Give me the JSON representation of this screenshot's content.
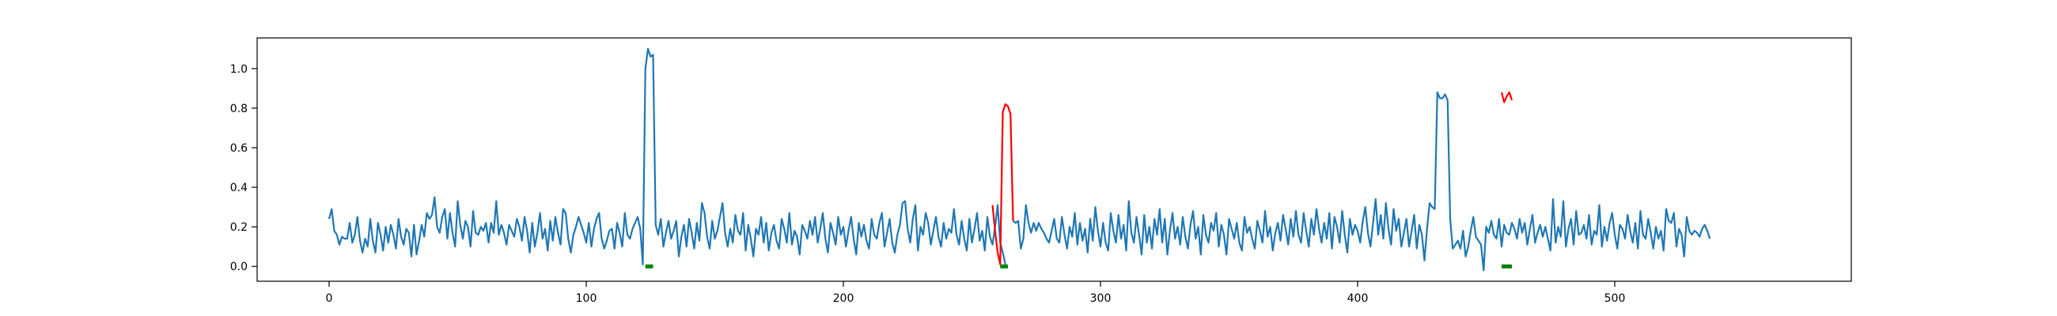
{
  "chart_data": {
    "type": "line",
    "title": "",
    "xlabel": "",
    "ylabel": "",
    "xlim": [
      -28,
      592
    ],
    "ylim": [
      -0.075,
      1.155
    ],
    "grid": false,
    "legend": "none",
    "x_ticks": [
      0,
      100,
      200,
      300,
      400,
      500
    ],
    "y_ticks": [
      0.0,
      0.2,
      0.4,
      0.6,
      0.8,
      1.0
    ],
    "x_tick_labels": [
      "0",
      "100",
      "200",
      "300",
      "400",
      "500"
    ],
    "y_tick_labels": [
      "0.0",
      "0.2",
      "0.4",
      "0.6",
      "0.8",
      "1.0"
    ],
    "series": [
      {
        "color": "#1f77b4",
        "x_start": 0,
        "values": [
          0.24,
          0.29,
          0.18,
          0.16,
          0.11,
          0.15,
          0.14,
          0.14,
          0.22,
          0.12,
          0.16,
          0.25,
          0.13,
          0.07,
          0.14,
          0.1,
          0.24,
          0.13,
          0.07,
          0.22,
          0.16,
          0.08,
          0.2,
          0.12,
          0.21,
          0.16,
          0.09,
          0.24,
          0.15,
          0.11,
          0.19,
          0.17,
          0.05,
          0.21,
          0.06,
          0.13,
          0.21,
          0.15,
          0.27,
          0.24,
          0.26,
          0.35,
          0.2,
          0.17,
          0.25,
          0.29,
          0.14,
          0.27,
          0.17,
          0.1,
          0.33,
          0.21,
          0.14,
          0.23,
          0.2,
          0.1,
          0.28,
          0.17,
          0.16,
          0.2,
          0.18,
          0.22,
          0.12,
          0.22,
          0.17,
          0.33,
          0.16,
          0.21,
          0.17,
          0.11,
          0.21,
          0.18,
          0.15,
          0.24,
          0.2,
          0.13,
          0.25,
          0.18,
          0.07,
          0.22,
          0.1,
          0.17,
          0.27,
          0.14,
          0.19,
          0.08,
          0.23,
          0.13,
          0.25,
          0.17,
          0.11,
          0.29,
          0.27,
          0.14,
          0.07,
          0.16,
          0.2,
          0.25,
          0.21,
          0.17,
          0.12,
          0.22,
          0.1,
          0.19,
          0.24,
          0.27,
          0.14,
          0.09,
          0.13,
          0.18,
          0.19,
          0.09,
          0.22,
          0.17,
          0.1,
          0.27,
          0.16,
          0.14,
          0.19,
          0.22,
          0.25,
          0.19,
          0.01,
          1.0,
          1.1,
          1.06,
          1.07,
          0.21,
          0.16,
          0.24,
          0.1,
          0.17,
          0.23,
          0.14,
          0.18,
          0.23,
          0.05,
          0.15,
          0.21,
          0.1,
          0.24,
          0.17,
          0.09,
          0.22,
          0.13,
          0.32,
          0.27,
          0.15,
          0.09,
          0.23,
          0.14,
          0.18,
          0.25,
          0.32,
          0.17,
          0.1,
          0.19,
          0.12,
          0.26,
          0.18,
          0.16,
          0.27,
          0.08,
          0.21,
          0.14,
          0.05,
          0.19,
          0.16,
          0.25,
          0.12,
          0.22,
          0.08,
          0.17,
          0.21,
          0.13,
          0.09,
          0.24,
          0.19,
          0.12,
          0.27,
          0.11,
          0.18,
          0.15,
          0.06,
          0.21,
          0.18,
          0.14,
          0.23,
          0.16,
          0.25,
          0.12,
          0.19,
          0.27,
          0.14,
          0.07,
          0.22,
          0.17,
          0.11,
          0.25,
          0.16,
          0.2,
          0.1,
          0.18,
          0.25,
          0.14,
          0.06,
          0.22,
          0.15,
          0.21,
          0.13,
          0.09,
          0.24,
          0.16,
          0.14,
          0.22,
          0.27,
          0.1,
          0.17,
          0.24,
          0.12,
          0.07,
          0.16,
          0.21,
          0.32,
          0.33,
          0.19,
          0.12,
          0.24,
          0.31,
          0.08,
          0.2,
          0.16,
          0.27,
          0.22,
          0.11,
          0.18,
          0.25,
          0.15,
          0.1,
          0.22,
          0.14,
          0.19,
          0.17,
          0.29,
          0.16,
          0.11,
          0.23,
          0.14,
          0.08,
          0.24,
          0.12,
          0.19,
          0.27,
          0.13,
          0.18,
          0.08,
          0.25,
          0.15,
          0.11,
          0.2,
          0.31,
          0.12,
          0.07,
          0.01
        ],
        "segments": [
          {
            "x_start": 266,
            "values": [
              0.23,
              0.22,
              0.23,
              0.09,
              0.14,
              0.31,
              0.22,
              0.17,
              0.22,
              0.18,
              0.22,
              0.19,
              0.17,
              0.14,
              0.12,
              0.18,
              0.24,
              0.14,
              0.12,
              0.25,
              0.16,
              0.09,
              0.2,
              0.15,
              0.27,
              0.11,
              0.22,
              0.13,
              0.19,
              0.07,
              0.24,
              0.13,
              0.3,
              0.18,
              0.1,
              0.22,
              0.12,
              0.08,
              0.27,
              0.18,
              0.12,
              0.26,
              0.14,
              0.21,
              0.08,
              0.33,
              0.17,
              0.12,
              0.25,
              0.16,
              0.06,
              0.26,
              0.12,
              0.2,
              0.09,
              0.24,
              0.16,
              0.29,
              0.12,
              0.24,
              0.06,
              0.18,
              0.27,
              0.14,
              0.2,
              0.11,
              0.25,
              0.15,
              0.09,
              0.21,
              0.28,
              0.14,
              0.2,
              0.06,
              0.26,
              0.16,
              0.12,
              0.22,
              0.18,
              0.27,
              0.1,
              0.21,
              0.16,
              0.06,
              0.24,
              0.19,
              0.14,
              0.22,
              0.12,
              0.08,
              0.25,
              0.17,
              0.2,
              0.14,
              0.09,
              0.23,
              0.18,
              0.12,
              0.28,
              0.15,
              0.2,
              0.08,
              0.17,
              0.22,
              0.13,
              0.26,
              0.19,
              0.11,
              0.24,
              0.15,
              0.28,
              0.16,
              0.12,
              0.27,
              0.18,
              0.1,
              0.24,
              0.16,
              0.29,
              0.19,
              0.12,
              0.22,
              0.14,
              0.27,
              0.09,
              0.25,
              0.2,
              0.12,
              0.28,
              0.16,
              0.07,
              0.24,
              0.16,
              0.21,
              0.18,
              0.12,
              0.23,
              0.3,
              0.17,
              0.1,
              0.22,
              0.34,
              0.16,
              0.26,
              0.14,
              0.32,
              0.19,
              0.11,
              0.29,
              0.18,
              0.24,
              0.1,
              0.17,
              0.24,
              0.1,
              0.18,
              0.26,
              0.09,
              0.21,
              0.16,
              0.03,
              0.19,
              0.32,
              0.3,
              0.29,
              0.88,
              0.85,
              0.85,
              0.87,
              0.84,
              0.24,
              0.09,
              0.11,
              0.13,
              0.09,
              0.18,
              0.05,
              0.1,
              0.18,
              0.25,
              0.15,
              0.13,
              0.11,
              -0.02,
              0.2,
              0.17,
              0.23,
              0.16,
              0.14,
              0.24,
              0.1,
              0.21,
              0.17,
              0.16,
              0.22,
              0.19,
              0.14,
              0.24,
              0.17,
              0.22,
              0.11,
              0.19,
              0.26,
              0.12,
              0.17,
              0.21,
              0.15,
              0.2,
              0.14,
              0.08,
              0.34,
              0.12,
              0.2,
              0.15,
              0.33,
              0.1,
              0.19,
              0.24,
              0.11,
              0.28,
              0.16,
              0.17,
              0.21,
              0.14,
              0.26,
              0.11,
              0.18,
              0.16,
              0.31,
              0.1,
              0.2,
              0.13,
              0.22,
              0.27,
              0.16,
              0.09,
              0.21,
              0.19,
              0.14,
              0.26,
              0.18,
              0.12,
              0.22,
              0.09,
              0.28,
              0.16,
              0.14,
              0.24,
              0.17,
              0.09,
              0.2,
              0.14,
              0.18,
              0.08,
              0.29,
              0.23,
              0.22,
              0.27,
              0.1,
              0.19,
              0.16,
              0.05,
              0.25,
              0.18,
              0.16,
              0.18,
              0.17,
              0.15,
              0.19,
              0.21,
              0.18,
              0.14
            ]
          }
        ]
      },
      {
        "color": "#ff0000",
        "segments": [
          {
            "x_start": 258,
            "values": [
              0.31,
              0.18,
              0.07,
              0.01,
              0.78,
              0.82,
              0.81,
              0.77,
              0.23
            ]
          },
          {
            "x_start": 456,
            "values": [
              0.88,
              0.83,
              0.86,
              0.88,
              0.84
            ]
          }
        ]
      },
      {
        "color": "#008000",
        "segments": [
          {
            "x_start": 123,
            "values": [
              0.0,
              0.0,
              0.0,
              0.0
            ]
          },
          {
            "x_start": 261,
            "values": [
              0.0,
              0.0,
              0.0,
              0.0
            ]
          },
          {
            "x_start": 456,
            "values": [
              0.0,
              0.0,
              0.0,
              0.0,
              0.0
            ]
          }
        ]
      }
    ]
  }
}
